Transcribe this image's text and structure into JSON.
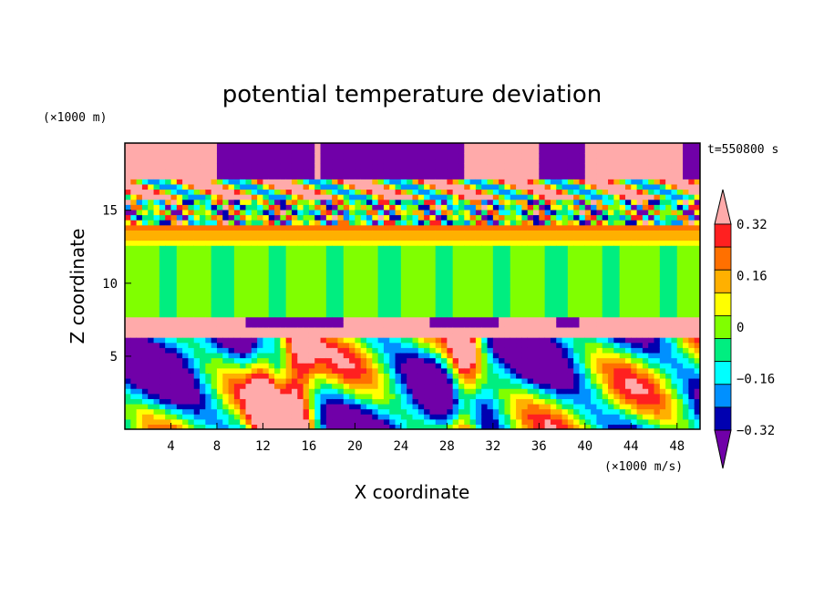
{
  "chart_data": {
    "type": "heatmap",
    "title": "potential temperature deviation",
    "xlabel": "X coordinate",
    "ylabel": "Z coordinate",
    "x_unit": "(×1000 m/s)",
    "y_unit": "(×1000 m)",
    "time_label": "t=550800 s",
    "xlim": [
      0,
      50
    ],
    "ylim": [
      0,
      19.6
    ],
    "x_ticks": [
      4,
      8,
      12,
      16,
      20,
      24,
      28,
      32,
      36,
      40,
      44,
      48
    ],
    "y_ticks": [
      5,
      10,
      15
    ],
    "colorbar": {
      "levels": [
        -0.4,
        -0.32,
        -0.24,
        -0.16,
        -0.08,
        0,
        0.08,
        0.16,
        0.24,
        0.32,
        0.4
      ],
      "tick_labels": [
        "0.32",
        "0.16",
        "0",
        "−0.16",
        "−0.32"
      ],
      "tick_values": [
        0.32,
        0.16,
        0,
        -0.16,
        -0.32
      ],
      "colors": [
        "#ffaaaa",
        "#ff2020",
        "#ff7000",
        "#ffb000",
        "#ffff00",
        "#80ff00",
        "#00ee80",
        "#00ffff",
        "#0090ff",
        "#0000b0",
        "#7000a8"
      ],
      "extend": "both"
    }
  }
}
